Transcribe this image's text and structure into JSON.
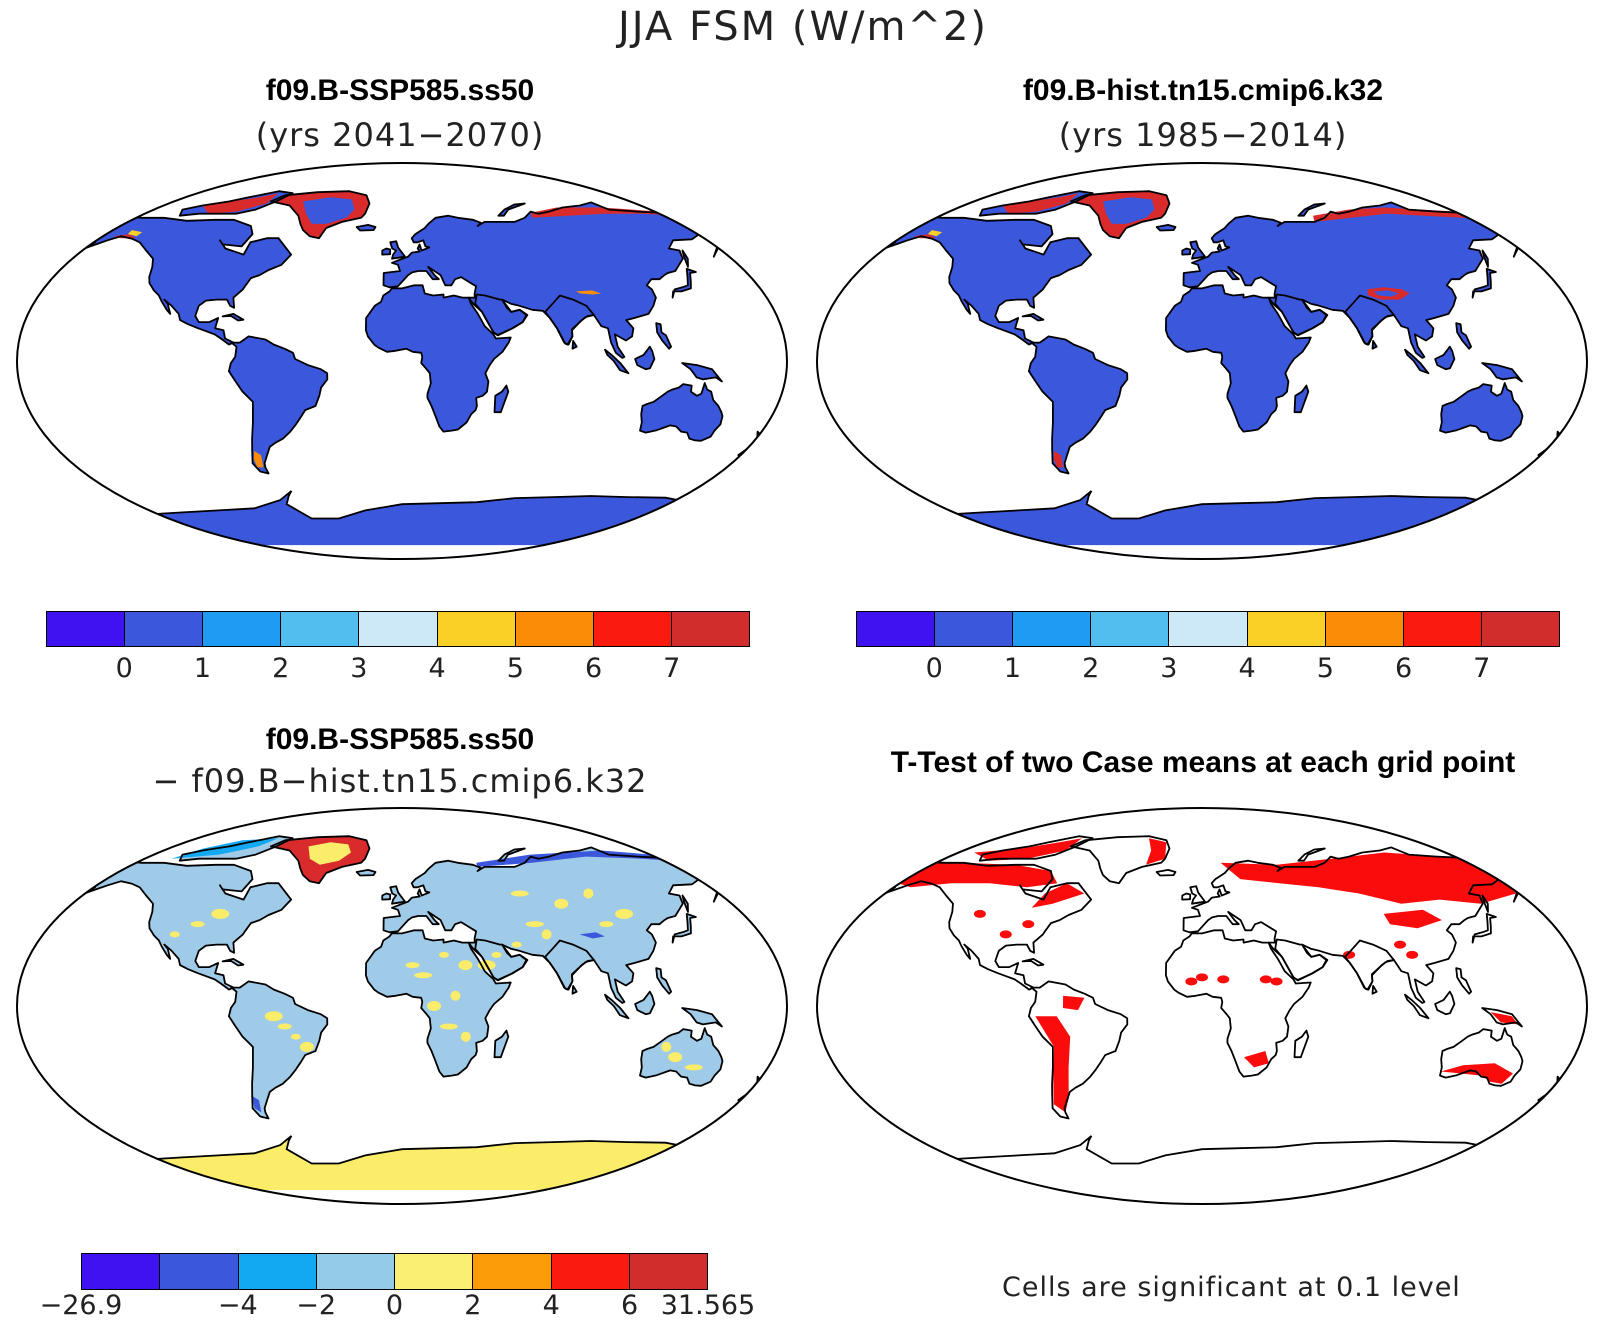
{
  "title": "JJA FSM (W/m^2)",
  "panels": [
    {
      "title": "f09.B-SSP585.ss50",
      "subtitle": "(yrs 2041−2070)"
    },
    {
      "title": "f09.B-hist.tn15.cmip6.k32",
      "subtitle": "(yrs 1985−2014)"
    },
    {
      "title": "f09.B-SSP585.ss50",
      "subtitle": "− f09.B−hist.tn15.cmip6.k32"
    },
    {
      "title": "T-Test of two Case means at each grid point",
      "subtitle": ""
    }
  ],
  "colorbars": {
    "abs": {
      "colors": [
        "#3f12f0",
        "#3b58dd",
        "#1f9bf4",
        "#52bef0",
        "#cde9f7",
        "#fbd026",
        "#fb8c08",
        "#fa1a10",
        "#d22d2d"
      ],
      "ticks": [
        "0",
        "1",
        "2",
        "3",
        "4",
        "5",
        "6",
        "7"
      ]
    },
    "diff": {
      "colors": [
        "#3f12f0",
        "#3b58dd",
        "#12a8f2",
        "#93cbe9",
        "#fbef73",
        "#fb9c08",
        "#fa1a10",
        "#d22d2d"
      ],
      "ticks": [
        "−26.9",
        "",
        "−4",
        "−2",
        "0",
        "2",
        "4",
        "6",
        "31.565"
      ]
    }
  },
  "significance_note": "Cells are significant at 0.1 level",
  "map_colors": {
    "land_abs": "#3b58dd",
    "land_diff": "#9fcbe8",
    "antarctica_diff": "#fbec6a",
    "significant": "#fa0c0c",
    "hot_red": "#d92b2b",
    "hot_orange": "#fb8c08",
    "hot_yellow": "#fbd026"
  }
}
